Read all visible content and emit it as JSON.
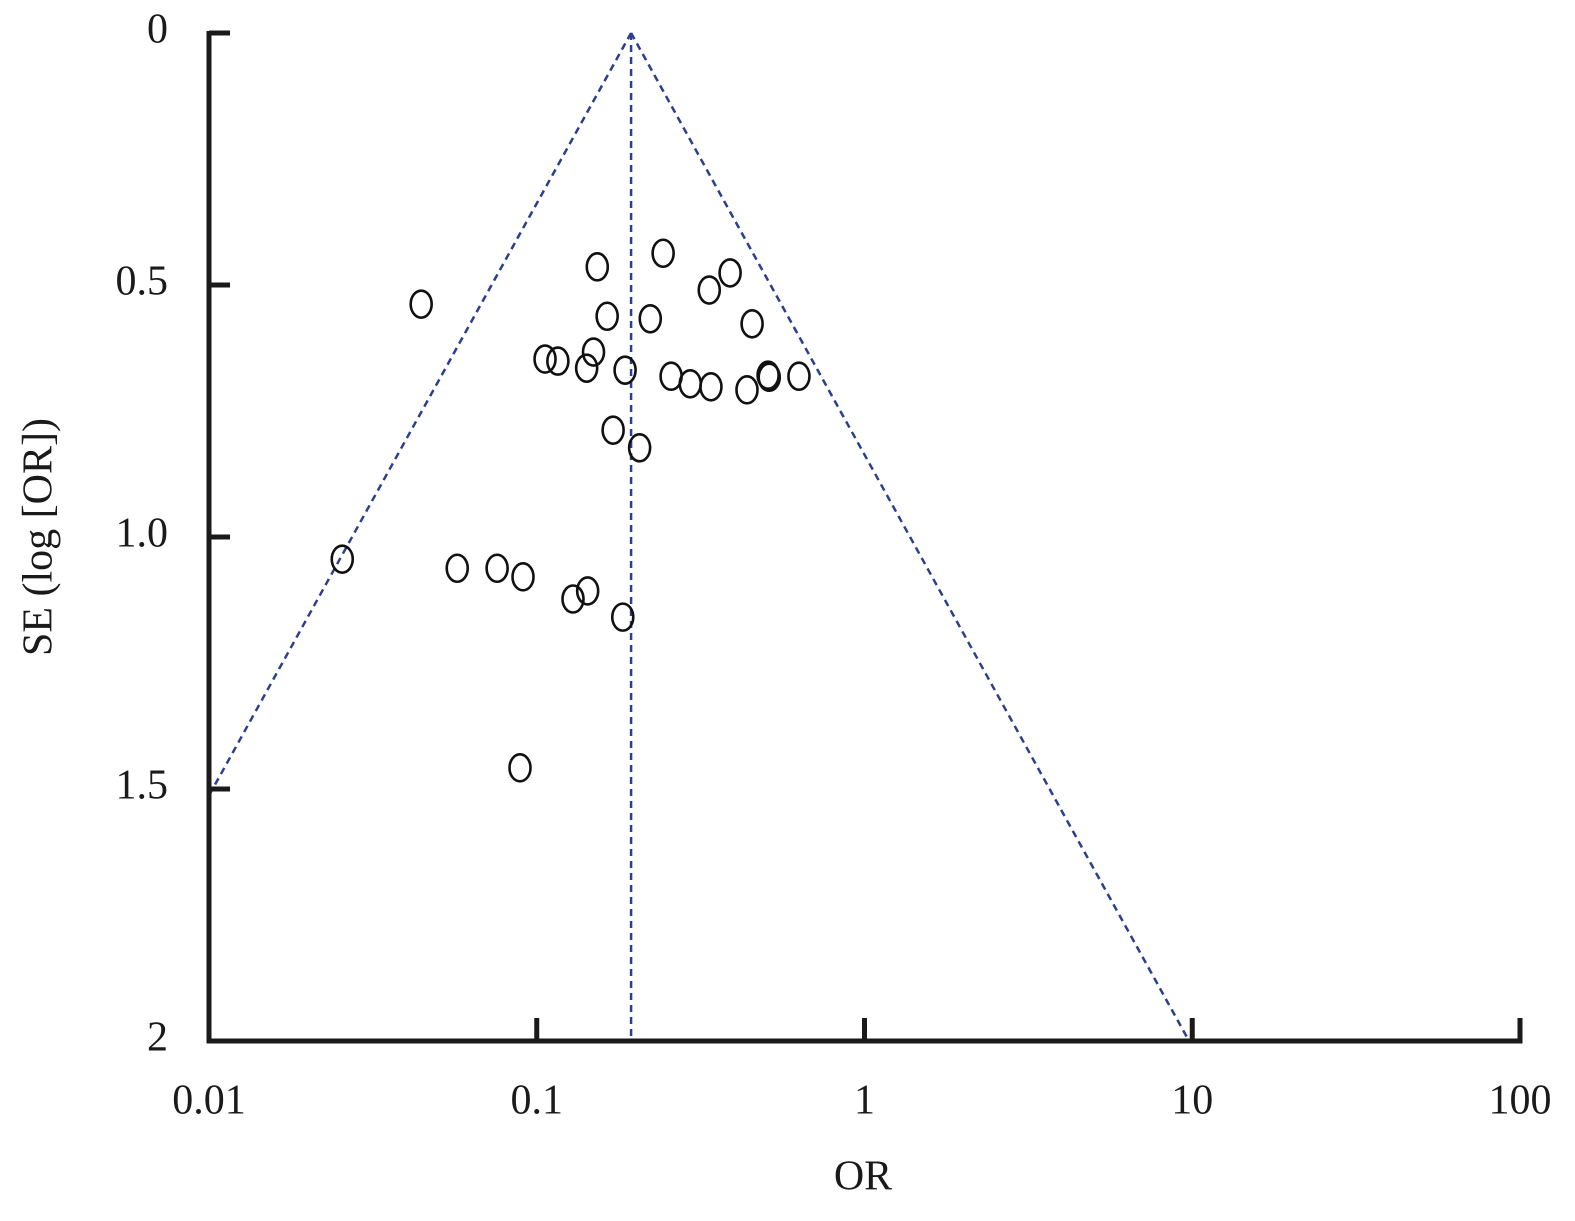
{
  "chart_data": {
    "type": "funnel-scatter",
    "xlabel": "OR",
    "ylabel": "SE (log [OR])",
    "x_log": true,
    "y_inverted": true,
    "xlim": [
      0.01,
      100
    ],
    "xticks": [
      0.01,
      0.1,
      1,
      10,
      100
    ],
    "ylim": [
      0,
      2
    ],
    "yticks": [
      0,
      0.5,
      {
        "value": 1,
        "label": "1.0"
      },
      1.5,
      2
    ],
    "pooled_or": 0.194,
    "funnel_z": 1.96,
    "funnel_color": "#2b3f8f",
    "marker_color": "#111111",
    "x": [
      0.0444,
      0.0255,
      0.153,
      0.243,
      0.389,
      0.336,
      0.164,
      0.222,
      0.454,
      0.106,
      0.116,
      0.149,
      0.142,
      0.186,
      0.257,
      0.294,
      0.34,
      0.438,
      0.508,
      0.512,
      0.631,
      0.171,
      0.206,
      0.0572,
      0.0757,
      0.0908,
      0.129,
      0.143,
      0.183,
      0.0889
    ],
    "y": [
      0.538,
      1.044,
      0.464,
      0.437,
      0.476,
      0.51,
      0.562,
      0.567,
      0.577,
      0.647,
      0.651,
      0.633,
      0.665,
      0.669,
      0.681,
      0.696,
      0.702,
      0.708,
      0.679,
      0.683,
      0.681,
      0.788,
      0.823,
      1.062,
      1.062,
      1.079,
      1.123,
      1.107,
      1.159,
      1.458
    ]
  }
}
